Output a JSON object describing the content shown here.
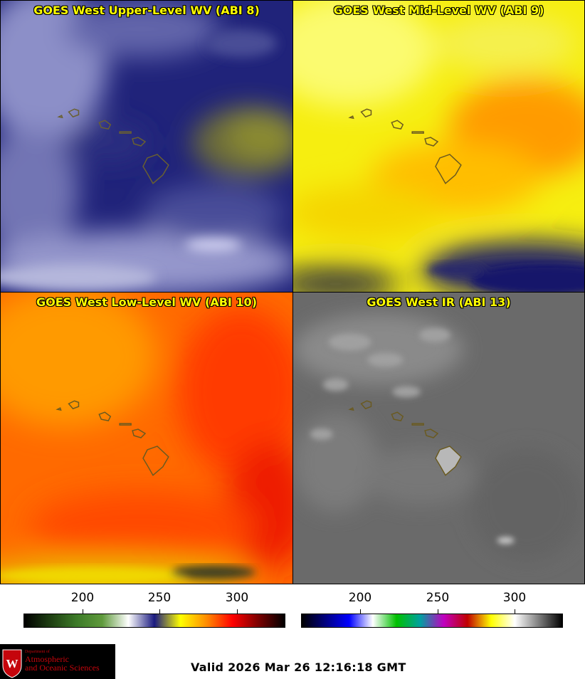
{
  "panels": [
    {
      "title": "GOES West Upper-Level WV (ABI 8)"
    },
    {
      "title": "GOES West Mid-Level WV (ABI 9)"
    },
    {
      "title": "GOES West Low-Level WV (ABI 10)"
    },
    {
      "title": "GOES West IR (ABI 13)"
    }
  ],
  "colorbars": {
    "wv": {
      "ticks": [
        "200",
        "250",
        "300"
      ],
      "colors": [
        "#000000",
        "#1e3e12",
        "#3c7a28",
        "#5f9a3c",
        "#ffffff",
        "#1a1a80",
        "#ffff00",
        "#ff8c00",
        "#ff0000",
        "#7a0000",
        "#000000"
      ]
    },
    "ir": {
      "ticks": [
        "200",
        "250",
        "300"
      ],
      "colors": [
        "#000000",
        "#000080",
        "#0000ff",
        "#ffffff",
        "#00c000",
        "#00a0a0",
        "#c000c0",
        "#c00000",
        "#ffff00",
        "#ffffff",
        "#7f7f7f",
        "#000000"
      ]
    }
  },
  "valid_text": "Valid 2026 Mar 26 12:16:18 GMT",
  "logo": {
    "line1": "Department of",
    "line2": "Atmospheric",
    "line3": "and Oceanic Sciences"
  }
}
